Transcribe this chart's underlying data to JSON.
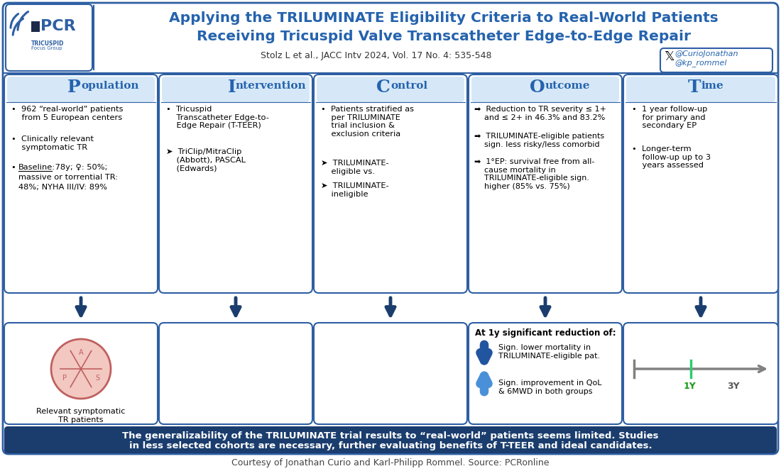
{
  "title_line1": "Applying the TRILUMINATE Eligibility Criteria to Real-World Patients",
  "title_line2": "Receiving Tricuspid Valve Transcatheter Edge-to-Edge Repair",
  "subtitle": "Stolz L et al., JACC Intv 2024, Vol. 17 No. 4: 535-548",
  "twitter_handles": [
    "@CurioJonathan",
    "@kp_rommel"
  ],
  "courtesy": "Courtesy of Jonathan Curio and Karl-Philipp Rommel. Source: PCRonline",
  "pico_first_letters": [
    "P",
    "I",
    "C",
    "O",
    "T"
  ],
  "pico_rest": [
    "opulation",
    "ntervention",
    "ontrol",
    "utcome",
    "ime"
  ],
  "bottom_box_line1": "The generalizability of the TRILUMINATE trial results to “real-world” patients seems limited. Studies",
  "bottom_box_line2": "in less selected cohorts are necessary, further evaluating benefits of T-TEER and ideal candidates.",
  "outcome_bottom_title": "At 1y significant reduction of:",
  "outcome_bottom_line1": "Sign. lower mortality in\nTRILUMINATE-eligible pat.",
  "outcome_bottom_line2": "Sign. improvement in QoL\n& 6MWD in both groups",
  "bg_color": "#ffffff",
  "border_color": "#2e5fa3",
  "header_text_color": "#2563ae",
  "bottom_bg": "#1b3d6e",
  "bottom_text_color": "#ffffff",
  "pico_header_bg": "#d6e8f7",
  "dark_navy": "#1b3d6e",
  "blue_down": "#2155a0",
  "blue_up": "#4a90d9",
  "gray_arrow": "#808080",
  "green_tick": "#2ecc71",
  "time_arrow_color": "#888888"
}
